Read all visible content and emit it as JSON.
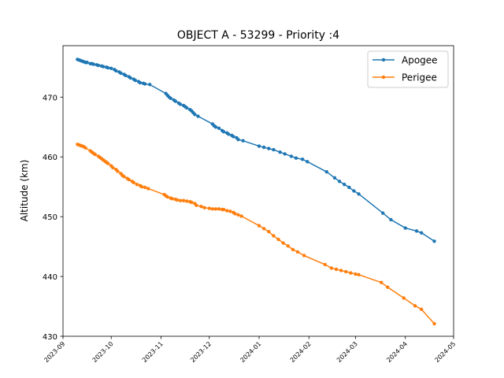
{
  "chart_data": {
    "type": "line",
    "title": "OBJECT A - 53299 - Priority :4",
    "xlabel": "",
    "ylabel": "Altitude (km)",
    "xlim": [
      "2023-09-01",
      "2024-05-01"
    ],
    "ylim": [
      430,
      478.6
    ],
    "yticks": [
      430,
      440,
      450,
      460,
      470
    ],
    "xticks": [
      "2023-09",
      "2023-10",
      "2023-11",
      "2023-12",
      "2024-01",
      "2024-02",
      "2024-03",
      "2024-04",
      "2024-05"
    ],
    "grid": false,
    "legend_position": "top-right",
    "series": [
      {
        "name": "Apogee",
        "color": "#1f77b4",
        "points": [
          [
            "2023-09-10",
            476.3
          ],
          [
            "2023-09-11",
            476.2
          ],
          [
            "2023-09-12",
            476.1
          ],
          [
            "2023-09-13",
            476.0
          ],
          [
            "2023-09-14",
            475.9
          ],
          [
            "2023-09-15",
            475.8
          ],
          [
            "2023-09-16",
            475.8
          ],
          [
            "2023-09-18",
            475.6
          ],
          [
            "2023-09-19",
            475.6
          ],
          [
            "2023-09-20",
            475.5
          ],
          [
            "2023-09-22",
            475.4
          ],
          [
            "2023-09-23",
            475.3
          ],
          [
            "2023-09-25",
            475.2
          ],
          [
            "2023-09-26",
            475.1
          ],
          [
            "2023-09-28",
            475.0
          ],
          [
            "2023-09-29",
            474.9
          ],
          [
            "2023-10-01",
            474.8
          ],
          [
            "2023-10-03",
            474.6
          ],
          [
            "2023-10-04",
            474.4
          ],
          [
            "2023-10-06",
            474.2
          ],
          [
            "2023-10-07",
            474.0
          ],
          [
            "2023-10-09",
            473.8
          ],
          [
            "2023-10-10",
            473.6
          ],
          [
            "2023-10-12",
            473.4
          ],
          [
            "2023-10-13",
            473.2
          ],
          [
            "2023-10-15",
            473.0
          ],
          [
            "2023-10-16",
            472.8
          ],
          [
            "2023-10-18",
            472.6
          ],
          [
            "2023-10-19",
            472.4
          ],
          [
            "2023-10-21",
            472.3
          ],
          [
            "2023-10-22",
            472.2
          ],
          [
            "2023-10-25",
            472.1
          ],
          [
            "2023-11-04",
            470.6
          ],
          [
            "2023-11-05",
            470.3
          ],
          [
            "2023-11-06",
            470.0
          ],
          [
            "2023-11-07",
            469.8
          ],
          [
            "2023-11-09",
            469.5
          ],
          [
            "2023-11-10",
            469.3
          ],
          [
            "2023-11-12",
            469.0
          ],
          [
            "2023-11-13",
            468.8
          ],
          [
            "2023-11-15",
            468.6
          ],
          [
            "2023-11-16",
            468.4
          ],
          [
            "2023-11-17",
            468.2
          ],
          [
            "2023-11-19",
            467.9
          ],
          [
            "2023-11-20",
            467.7
          ],
          [
            "2023-11-21",
            467.4
          ],
          [
            "2023-11-22",
            467.1
          ],
          [
            "2023-11-24",
            466.8
          ],
          [
            "2023-12-03",
            465.5
          ],
          [
            "2023-12-04",
            465.2
          ],
          [
            "2023-12-05",
            465.0
          ],
          [
            "2023-12-07",
            464.8
          ],
          [
            "2023-12-09",
            464.4
          ],
          [
            "2023-12-10",
            464.2
          ],
          [
            "2023-12-12",
            464.0
          ],
          [
            "2023-12-13",
            463.8
          ],
          [
            "2023-12-15",
            463.6
          ],
          [
            "2023-12-16",
            463.4
          ],
          [
            "2023-12-18",
            463.2
          ],
          [
            "2023-12-19",
            462.9
          ],
          [
            "2023-12-22",
            462.7
          ],
          [
            "2024-01-01",
            461.8
          ],
          [
            "2024-01-04",
            461.6
          ],
          [
            "2024-01-07",
            461.4
          ],
          [
            "2024-01-10",
            461.2
          ],
          [
            "2024-01-14",
            460.8
          ],
          [
            "2024-01-17",
            460.5
          ],
          [
            "2024-01-21",
            460.1
          ],
          [
            "2024-01-24",
            459.8
          ],
          [
            "2024-01-28",
            459.6
          ],
          [
            "2024-01-31",
            459.2
          ],
          [
            "2024-02-12",
            457.5
          ],
          [
            "2024-02-17",
            456.5
          ],
          [
            "2024-02-20",
            455.9
          ],
          [
            "2024-02-23",
            455.4
          ],
          [
            "2024-02-26",
            454.9
          ],
          [
            "2024-02-29",
            454.3
          ],
          [
            "2024-03-03",
            453.8
          ],
          [
            "2024-03-18",
            450.6
          ],
          [
            "2024-03-23",
            449.5
          ],
          [
            "2024-04-01",
            448.1
          ],
          [
            "2024-04-08",
            447.6
          ],
          [
            "2024-04-11",
            447.3
          ],
          [
            "2024-04-19",
            445.9
          ]
        ]
      },
      {
        "name": "Perigee",
        "color": "#ff7f0e",
        "points": [
          [
            "2023-09-10",
            462.1
          ],
          [
            "2023-09-11",
            462.0
          ],
          [
            "2023-09-12",
            461.9
          ],
          [
            "2023-09-13",
            461.8
          ],
          [
            "2023-09-14",
            461.7
          ],
          [
            "2023-09-15",
            461.5
          ],
          [
            "2023-09-18",
            461.0
          ],
          [
            "2023-09-19",
            460.8
          ],
          [
            "2023-09-20",
            460.6
          ],
          [
            "2023-09-21",
            460.4
          ],
          [
            "2023-09-23",
            460.1
          ],
          [
            "2023-09-24",
            459.9
          ],
          [
            "2023-09-25",
            459.7
          ],
          [
            "2023-09-26",
            459.5
          ],
          [
            "2023-09-27",
            459.3
          ],
          [
            "2023-09-28",
            459.1
          ],
          [
            "2023-09-29",
            458.9
          ],
          [
            "2023-10-01",
            458.5
          ],
          [
            "2023-10-02",
            458.2
          ],
          [
            "2023-10-04",
            457.9
          ],
          [
            "2023-10-05",
            457.6
          ],
          [
            "2023-10-07",
            457.2
          ],
          [
            "2023-10-08",
            456.9
          ],
          [
            "2023-10-09",
            456.7
          ],
          [
            "2023-10-11",
            456.4
          ],
          [
            "2023-10-12",
            456.2
          ],
          [
            "2023-10-14",
            455.9
          ],
          [
            "2023-10-15",
            455.7
          ],
          [
            "2023-10-17",
            455.4
          ],
          [
            "2023-10-19",
            455.2
          ],
          [
            "2023-10-20",
            455.0
          ],
          [
            "2023-10-22",
            454.9
          ],
          [
            "2023-10-24",
            454.7
          ],
          [
            "2023-11-03",
            453.7
          ],
          [
            "2023-11-04",
            453.5
          ],
          [
            "2023-11-05",
            453.3
          ],
          [
            "2023-11-07",
            453.1
          ],
          [
            "2023-11-08",
            453.0
          ],
          [
            "2023-11-10",
            452.9
          ],
          [
            "2023-11-11",
            452.8
          ],
          [
            "2023-11-13",
            452.7
          ],
          [
            "2023-11-15",
            452.7
          ],
          [
            "2023-11-17",
            452.6
          ],
          [
            "2023-11-19",
            452.5
          ],
          [
            "2023-11-20",
            452.4
          ],
          [
            "2023-11-22",
            452.2
          ],
          [
            "2023-11-23",
            451.9
          ],
          [
            "2023-11-26",
            451.7
          ],
          [
            "2023-11-28",
            451.5
          ],
          [
            "2023-12-01",
            451.4
          ],
          [
            "2023-12-03",
            451.3
          ],
          [
            "2023-12-05",
            451.3
          ],
          [
            "2023-12-07",
            451.3
          ],
          [
            "2023-12-09",
            451.2
          ],
          [
            "2023-12-10",
            451.2
          ],
          [
            "2023-12-12",
            451.0
          ],
          [
            "2023-12-14",
            450.9
          ],
          [
            "2023-12-16",
            450.7
          ],
          [
            "2023-12-17",
            450.5
          ],
          [
            "2023-12-19",
            450.3
          ],
          [
            "2023-12-21",
            450.1
          ],
          [
            "2024-01-01",
            448.5
          ],
          [
            "2024-01-04",
            448.0
          ],
          [
            "2024-01-07",
            447.5
          ],
          [
            "2024-01-10",
            446.8
          ],
          [
            "2024-01-13",
            446.2
          ],
          [
            "2024-01-16",
            445.6
          ],
          [
            "2024-01-19",
            445.1
          ],
          [
            "2024-01-22",
            444.5
          ],
          [
            "2024-01-25",
            444.1
          ],
          [
            "2024-01-29",
            443.5
          ],
          [
            "2024-02-11",
            442.0
          ],
          [
            "2024-02-15",
            441.4
          ],
          [
            "2024-02-18",
            441.2
          ],
          [
            "2024-02-21",
            441.0
          ],
          [
            "2024-02-24",
            440.8
          ],
          [
            "2024-02-27",
            440.6
          ],
          [
            "2024-03-01",
            440.4
          ],
          [
            "2024-03-03",
            440.3
          ],
          [
            "2024-03-17",
            439.0
          ],
          [
            "2024-03-21",
            438.2
          ],
          [
            "2024-03-31",
            436.4
          ],
          [
            "2024-04-07",
            435.1
          ],
          [
            "2024-04-11",
            434.5
          ],
          [
            "2024-04-19",
            432.1
          ]
        ]
      }
    ]
  }
}
